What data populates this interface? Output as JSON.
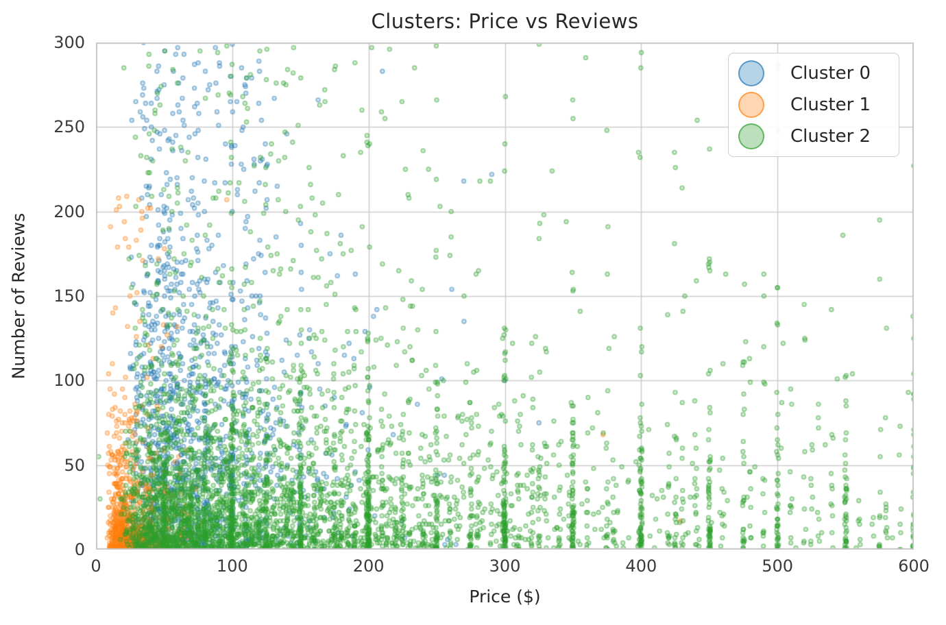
{
  "chart_data": {
    "type": "scatter",
    "title": "Clusters: Price vs Reviews",
    "xlabel": "Price ($)",
    "ylabel": "Number of Reviews",
    "xlim": [
      0,
      600
    ],
    "ylim": [
      0,
      300
    ],
    "xticks": [
      0,
      100,
      200,
      300,
      400,
      500,
      600
    ],
    "yticks": [
      0,
      50,
      100,
      150,
      200,
      250,
      300
    ],
    "grid": true,
    "grid_color": "#cccccc",
    "spine_color": "#c6c6c6",
    "text_color": "#262626",
    "tick_color": "#3a3a3a",
    "background": "#ffffff",
    "legend_position": "upper right",
    "marker": {
      "radius": 3,
      "fill_alpha": 0.25,
      "edge_alpha": 0.5,
      "edge_width": 1.4
    },
    "legend_marker": {
      "fill_alpha": 0.32,
      "edge_alpha": 0.65
    },
    "series": [
      {
        "name": "Cluster 0",
        "color": "#1f77b4",
        "n": 1250,
        "seed": 101,
        "distribution": {
          "price": {
            "base": 22,
            "exp_mean": 42,
            "spread": 30,
            "max": 320,
            "snap_frac": 0.22,
            "snap_values": [
              [
                30,
                0.7
              ],
              [
                35,
                0.8
              ],
              [
                40,
                1
              ],
              [
                45,
                0.9
              ],
              [
                50,
                1
              ],
              [
                60,
                1
              ],
              [
                75,
                1.2
              ],
              [
                80,
                1
              ],
              [
                90,
                0.8
              ],
              [
                99,
                1
              ],
              [
                100,
                1.6
              ],
              [
                110,
                0.7
              ],
              [
                120,
                0.8
              ],
              [
                125,
                1
              ],
              [
                150,
                0.9
              ]
            ]
          },
          "reviews": {
            "max": 300,
            "mix": [
              {
                "w": 0.45,
                "type": "exp",
                "mean": 40
              },
              {
                "w": 0.45,
                "type": "absnorm",
                "base": 35,
                "sd": 80
              },
              {
                "w": 0.1,
                "type": "uniform",
                "lo": 150,
                "hi": 300
              }
            ]
          }
        },
        "points": [
          [
            60,
            297
          ],
          [
            100,
            299
          ],
          [
            75,
            288
          ],
          [
            88,
            276
          ],
          [
            50,
            275
          ],
          [
            120,
            283
          ],
          [
            110,
            270
          ],
          [
            163,
            266
          ],
          [
            108,
            250
          ],
          [
            140,
            246
          ],
          [
            95,
            240
          ],
          [
            300,
            100
          ],
          [
            325,
            75
          ],
          [
            270,
            135
          ]
        ]
      },
      {
        "name": "Cluster 1",
        "color": "#ff7f0e",
        "n": 800,
        "seed": 202,
        "distribution": {
          "price": {
            "base": 8,
            "exp_mean": 15,
            "spread": 10,
            "max": 80,
            "snap_frac": 0,
            "snap_values": []
          },
          "reviews": {
            "max": 212,
            "mix": [
              {
                "w": 0.82,
                "type": "exp",
                "mean": 15
              },
              {
                "w": 0.15,
                "type": "absnorm",
                "base": 30,
                "sd": 40
              },
              {
                "w": 0.03,
                "type": "uniform",
                "lo": 90,
                "hi": 210
              }
            ]
          }
        },
        "points": [
          [
            96,
            207
          ],
          [
            34,
            196
          ],
          [
            24,
            179
          ],
          [
            30,
            152
          ],
          [
            25,
            150
          ],
          [
            12,
            110
          ],
          [
            48,
            120
          ],
          [
            372,
            68
          ],
          [
            429,
            17
          ]
        ]
      },
      {
        "name": "Cluster 2",
        "color": "#2ca02c",
        "n": 4200,
        "seed": 303,
        "distribution": {
          "price": {
            "base": 16,
            "exp_mean": 98,
            "spread": 25,
            "max": 600,
            "snap_frac": 0.4,
            "snap_values": [
              [
                50,
                2.2
              ],
              [
                60,
                1.2
              ],
              [
                65,
                1.0
              ],
              [
                70,
                1.2
              ],
              [
                75,
                1.5
              ],
              [
                80,
                1.3
              ],
              [
                85,
                0.9
              ],
              [
                90,
                1.1
              ],
              [
                99,
                2.0
              ],
              [
                100,
                3.4
              ],
              [
                110,
                1.0
              ],
              [
                115,
                0.8
              ],
              [
                120,
                1.1
              ],
              [
                125,
                2.2
              ],
              [
                130,
                0.9
              ],
              [
                135,
                0.8
              ],
              [
                140,
                0.9
              ],
              [
                145,
                0.8
              ],
              [
                150,
                3.2
              ],
              [
                160,
                1.0
              ],
              [
                165,
                0.7
              ],
              [
                175,
                1.7
              ],
              [
                180,
                0.9
              ],
              [
                185,
                0.6
              ],
              [
                190,
                0.8
              ],
              [
                199,
                1.5
              ],
              [
                200,
                3.2
              ],
              [
                210,
                0.8
              ],
              [
                220,
                0.7
              ],
              [
                225,
                1.4
              ],
              [
                230,
                0.7
              ],
              [
                240,
                0.8
              ],
              [
                250,
                3.0
              ],
              [
                260,
                0.7
              ],
              [
                265,
                0.5
              ],
              [
                275,
                1.5
              ],
              [
                280,
                0.6
              ],
              [
                290,
                0.5
              ],
              [
                299,
                1.2
              ],
              [
                300,
                2.9
              ],
              [
                310,
                0.5
              ],
              [
                320,
                0.5
              ],
              [
                325,
                1.0
              ],
              [
                330,
                0.4
              ],
              [
                340,
                0.4
              ],
              [
                350,
                2.6
              ],
              [
                360,
                0.5
              ],
              [
                375,
                0.9
              ],
              [
                380,
                0.4
              ],
              [
                399,
                0.7
              ],
              [
                400,
                2.4
              ],
              [
                420,
                0.4
              ],
              [
                425,
                0.8
              ],
              [
                430,
                0.4
              ],
              [
                440,
                0.7
              ],
              [
                450,
                2.1
              ],
              [
                460,
                0.4
              ],
              [
                475,
                0.7
              ],
              [
                480,
                0.4
              ],
              [
                490,
                0.3
              ],
              [
                500,
                2.1
              ],
              [
                510,
                0.3
              ],
              [
                520,
                0.3
              ],
              [
                525,
                0.5
              ],
              [
                530,
                0.3
              ],
              [
                540,
                0.3
              ],
              [
                550,
                1.7
              ],
              [
                560,
                0.3
              ],
              [
                570,
                0.25
              ],
              [
                575,
                0.6
              ],
              [
                580,
                0.25
              ],
              [
                590,
                0.2
              ],
              [
                600,
                1.5
              ]
            ]
          },
          "reviews": {
            "max": 300,
            "mix": [
              {
                "w": 0.78,
                "type": "exp",
                "mean": 26
              },
              {
                "w": 0.16,
                "type": "absnorm",
                "base": 30,
                "sd": 60
              },
              {
                "w": 0.06,
                "type": "uniform",
                "lo": 100,
                "hi": 300
              }
            ]
          }
        },
        "points": [
          [
            2,
            55
          ],
          [
            3,
            30
          ],
          [
            96,
            298
          ],
          [
            145,
            297
          ],
          [
            190,
            288
          ],
          [
            125,
            278
          ],
          [
            168,
            265
          ],
          [
            250,
            266
          ],
          [
            212,
            255
          ],
          [
            350,
            255
          ],
          [
            300,
            240
          ],
          [
            240,
            236
          ],
          [
            398,
            235
          ],
          [
            430,
            214
          ],
          [
            345,
            194
          ],
          [
            450,
            172
          ],
          [
            462,
            163
          ],
          [
            500,
            155
          ],
          [
            432,
            150
          ],
          [
            490,
            163
          ],
          [
            548,
            186
          ],
          [
            575,
            160
          ],
          [
            580,
            131
          ],
          [
            596,
            93
          ],
          [
            600,
            104
          ],
          [
            520,
            125
          ],
          [
            555,
            104
          ],
          [
            535,
            62
          ]
        ]
      }
    ]
  }
}
